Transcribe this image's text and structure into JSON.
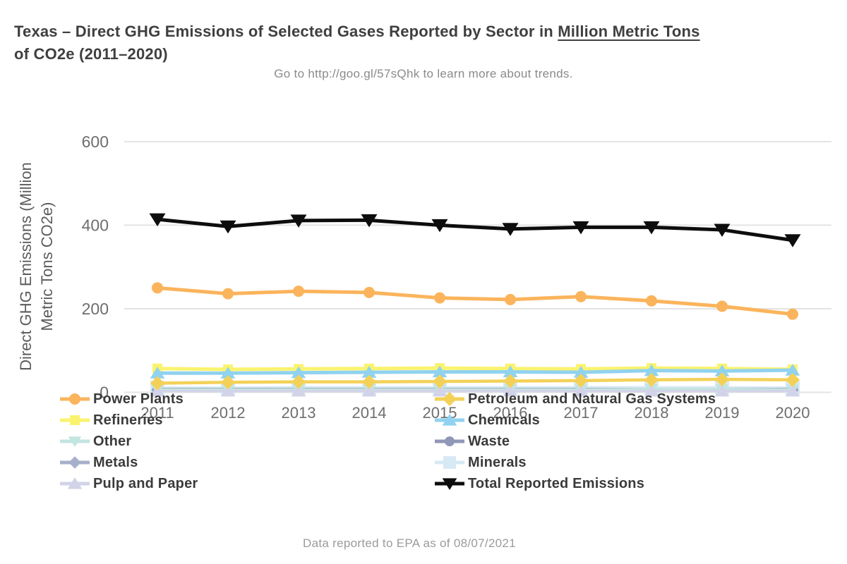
{
  "header": {
    "title_prefix": "Texas – Direct GHG Emissions of Selected Gases Reported by Sector in ",
    "title_underlined": "Million Metric Tons",
    "title_suffix": "of CO2e (2011–2020)",
    "subtitle": "Go to http://goo.gl/57sQhk to learn more about trends."
  },
  "footer": {
    "text": "Data reported to EPA as of 08/07/2021"
  },
  "chart_data": {
    "type": "line",
    "title": "Texas – Direct GHG Emissions of Selected Gases Reported by Sector in Million Metric Tons of CO2e (2011–2020)",
    "subtitle": "Go to http://goo.gl/57sQhk to learn more about trends.",
    "xlabel": "",
    "ylabel": "Direct GHG Emissions (Million Metric Tons CO2e)",
    "ylabel_lines": [
      "Direct GHG Emissions (Million",
      "Metric Tons CO2e)"
    ],
    "x": [
      2011,
      2012,
      2013,
      2014,
      2015,
      2016,
      2017,
      2018,
      2019,
      2020
    ],
    "yticks": [
      0,
      200,
      400,
      600
    ],
    "ylim": [
      0,
      650
    ],
    "grid": "horizontal",
    "legend_position": "bottom-two-columns",
    "colors": {
      "grid": "#e3e3e3",
      "tick_text": "#6e6e6e",
      "axis_title_text": "#5c5c5c"
    },
    "series": [
      {
        "name": "Minerals",
        "slug": "minerals",
        "marker": "square",
        "color": "#D7E9F5",
        "line_width": 3.5,
        "marker_size": 10,
        "values": [
          11,
          11,
          12,
          12,
          12,
          12,
          12,
          12,
          12,
          11
        ]
      },
      {
        "name": "Metals",
        "slug": "metals",
        "marker": "diamond",
        "color": "#A7B0CB",
        "line_width": 3.5,
        "marker_size": 7,
        "values": [
          5,
          5,
          5,
          5,
          5,
          5,
          5,
          5,
          5,
          5
        ]
      },
      {
        "name": "Waste",
        "slug": "waste",
        "marker": "circle",
        "color": "#9097B7",
        "line_width": 3.5,
        "marker_size": 7,
        "values": [
          8,
          8,
          8,
          8,
          8,
          8,
          8,
          8,
          8,
          8
        ]
      },
      {
        "name": "Other",
        "slug": "other",
        "marker": "triangle-down",
        "color": "#C3E4E0",
        "line_width": 3.5,
        "marker_size": 8,
        "values": [
          7,
          7,
          7,
          7,
          7,
          7,
          7,
          8,
          8,
          7
        ]
      },
      {
        "name": "Pulp and Paper",
        "slug": "pulp-and-paper",
        "marker": "triangle-up",
        "color": "#D2D3E8",
        "line_width": 3.5,
        "marker_size": 9,
        "values": [
          3,
          3,
          3,
          3,
          3,
          3,
          3,
          3,
          3,
          3
        ]
      },
      {
        "name": "Refineries",
        "slug": "refineries",
        "marker": "square",
        "color": "#FAF36F",
        "line_width": 5,
        "marker_size": 7,
        "values": [
          57,
          55,
          56,
          57,
          58,
          57,
          56,
          58,
          57,
          55
        ]
      },
      {
        "name": "Chemicals",
        "slug": "chemicals",
        "marker": "triangle-up",
        "color": "#90D2EF",
        "line_width": 5,
        "marker_size": 9,
        "values": [
          46,
          46,
          47,
          48,
          49,
          49,
          48,
          52,
          51,
          53
        ]
      },
      {
        "name": "Petroleum and Natural Gas Systems",
        "slug": "petroleum-and-natural-gas-systems",
        "marker": "diamond",
        "color": "#F3D158",
        "line_width": 4.5,
        "marker_size": 8,
        "values": [
          22,
          24,
          25,
          25,
          26,
          27,
          28,
          30,
          31,
          30
        ]
      },
      {
        "name": "Power Plants",
        "slug": "power-plants",
        "marker": "circle",
        "color": "#FBB45C",
        "line_width": 5,
        "marker_size": 8,
        "values": [
          250,
          236,
          242,
          239,
          226,
          222,
          229,
          219,
          206,
          187
        ]
      },
      {
        "name": "Total Reported Emissions",
        "slug": "total-reported-emissions",
        "marker": "triangle-down",
        "color": "#0D0D0D",
        "line_width": 5,
        "marker_size": 10,
        "values": [
          414,
          397,
          411,
          412,
          400,
          391,
          395,
          395,
          389,
          364
        ]
      }
    ],
    "legend": {
      "left": [
        "Power Plants",
        "Refineries",
        "Other",
        "Metals",
        "Pulp and Paper"
      ],
      "right": [
        "Petroleum and Natural Gas Systems",
        "Chemicals",
        "Waste",
        "Minerals",
        "Total Reported Emissions"
      ]
    }
  }
}
